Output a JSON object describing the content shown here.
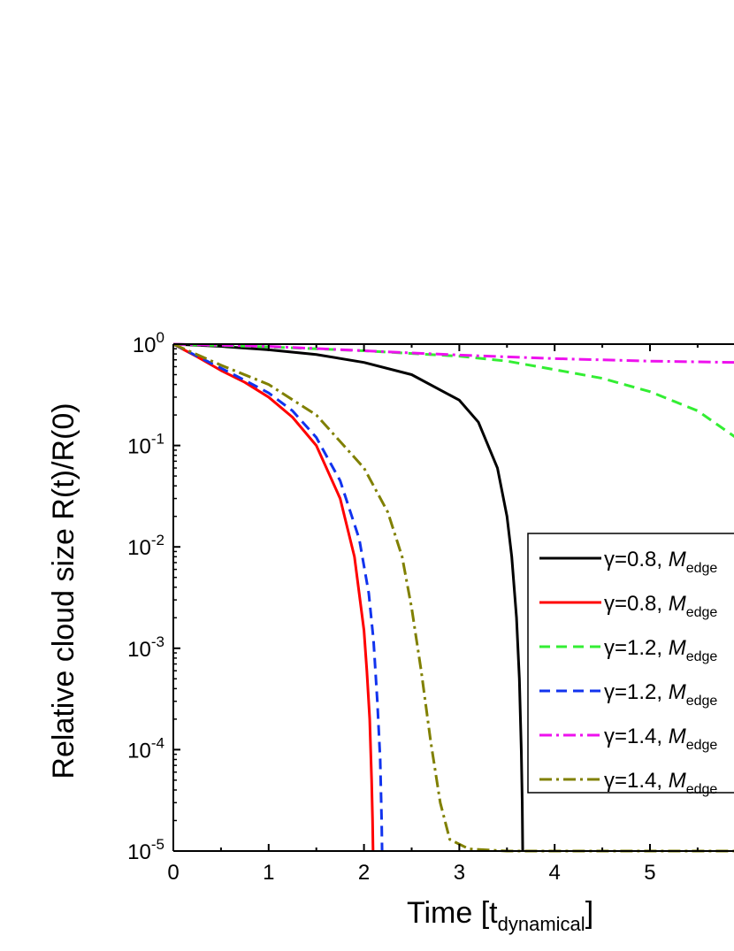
{
  "chart_data": {
    "type": "line",
    "title": "",
    "xlabel": "Time [t",
    "xlabel_sub": "dynamical",
    "xlabel_close": "]",
    "ylabel": "Relative cloud size R(t)/R(0)",
    "xlim": [
      0,
      5.9
    ],
    "ylim": [
      1e-05,
      1
    ],
    "yscale": "log",
    "x_ticks": [
      "0",
      "1",
      "2",
      "3",
      "4",
      "5"
    ],
    "y_ticks": [
      {
        "base": "10",
        "exp": "0",
        "value": 1
      },
      {
        "base": "10",
        "exp": "-1",
        "value": 0.1
      },
      {
        "base": "10",
        "exp": "-2",
        "value": 0.01
      },
      {
        "base": "10",
        "exp": "-3",
        "value": 0.001
      },
      {
        "base": "10",
        "exp": "-4",
        "value": 0.0001
      },
      {
        "base": "10",
        "exp": "-5",
        "value": 1e-05
      }
    ],
    "legend_position": "right",
    "series": [
      {
        "name": "γ=0.8, M",
        "name_sub": "edge",
        "color": "#000000",
        "dash": "solid",
        "x": [
          0,
          0.5,
          1.0,
          1.5,
          2.0,
          2.5,
          3.0,
          3.2,
          3.4,
          3.5,
          3.55,
          3.6,
          3.63,
          3.65,
          3.66,
          3.665
        ],
        "y": [
          1,
          0.95,
          0.88,
          0.79,
          0.66,
          0.5,
          0.28,
          0.17,
          0.06,
          0.02,
          0.008,
          0.002,
          0.0005,
          0.0001,
          3e-05,
          1e-05
        ]
      },
      {
        "name": "γ=0.8, M",
        "name_sub": "edge",
        "color": "#ff0000",
        "dash": "solid",
        "x": [
          0,
          0.25,
          0.5,
          0.75,
          1.0,
          1.25,
          1.5,
          1.75,
          1.9,
          2.0,
          2.03,
          2.06,
          2.08,
          2.09,
          2.095
        ],
        "y": [
          1,
          0.75,
          0.55,
          0.42,
          0.3,
          0.19,
          0.1,
          0.03,
          0.008,
          0.0015,
          0.0006,
          0.0002,
          5e-05,
          2e-05,
          1e-05
        ]
      },
      {
        "name": "γ=1.2, M",
        "name_sub": "edge",
        "color": "#33ee33",
        "dash": "dash",
        "x": [
          0,
          1,
          2,
          3,
          3.5,
          4,
          4.5,
          5,
          5.5,
          5.9
        ],
        "y": [
          1,
          0.94,
          0.86,
          0.76,
          0.68,
          0.56,
          0.46,
          0.34,
          0.22,
          0.12
        ]
      },
      {
        "name": "γ=1.2, M",
        "name_sub": "edge",
        "color": "#1133ee",
        "dash": "dash",
        "x": [
          0,
          0.25,
          0.5,
          0.75,
          1.0,
          1.25,
          1.5,
          1.75,
          1.95,
          2.05,
          2.1,
          2.14,
          2.17,
          2.185,
          2.19
        ],
        "y": [
          1,
          0.76,
          0.58,
          0.44,
          0.33,
          0.22,
          0.12,
          0.045,
          0.012,
          0.0035,
          0.0012,
          0.0003,
          8e-05,
          2e-05,
          1e-05
        ]
      },
      {
        "name": "γ=1.4, M",
        "name_sub": "edge",
        "color": "#ee11ee",
        "dash": "dashdot",
        "x": [
          0,
          1,
          2,
          3,
          4,
          5,
          5.9
        ],
        "y": [
          1,
          0.95,
          0.86,
          0.78,
          0.72,
          0.68,
          0.66
        ]
      },
      {
        "name": "γ=1.4, M",
        "name_sub": "edge",
        "color": "#808000",
        "dash": "dashdot",
        "x": [
          0,
          0.5,
          1.0,
          1.5,
          2.0,
          2.25,
          2.4,
          2.5,
          2.6,
          2.7,
          2.8,
          2.9,
          3.1,
          3.5,
          4,
          5,
          5.9
        ],
        "y": [
          1,
          0.62,
          0.4,
          0.2,
          0.06,
          0.022,
          0.008,
          0.0025,
          0.0006,
          0.00012,
          3e-05,
          1.3e-05,
          1.05e-05,
          1e-05,
          1e-05,
          1e-05,
          1e-05
        ]
      }
    ]
  }
}
